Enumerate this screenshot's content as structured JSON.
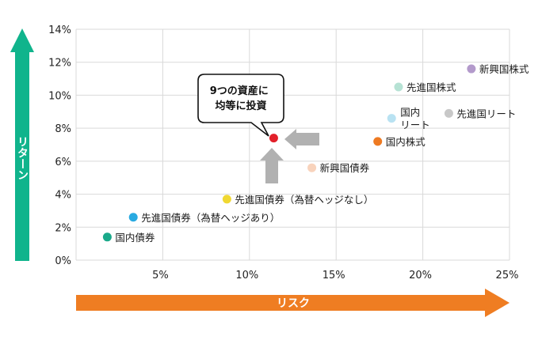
{
  "chart_data": {
    "type": "scatter",
    "xlabel": "リスク",
    "ylabel": "リターン",
    "xlim": [
      0,
      25
    ],
    "ylim": [
      0,
      14
    ],
    "xticks": [
      5,
      10,
      15,
      20,
      25
    ],
    "xtick_labels": [
      "5%",
      "10%",
      "15%",
      "20%",
      "25%"
    ],
    "yticks": [
      0,
      2,
      4,
      6,
      8,
      10,
      12,
      14
    ],
    "ytick_labels": [
      "0%",
      "2%",
      "4%",
      "6%",
      "8%",
      "10%",
      "12%",
      "14%"
    ],
    "grid": true,
    "points": [
      {
        "name": "国内債券",
        "x": 1.8,
        "y": 1.4,
        "color": "#1aa98a"
      },
      {
        "name": "先進国債券（為替ヘッジあり）",
        "x": 3.3,
        "y": 2.6,
        "color": "#29aae1"
      },
      {
        "name": "先進国債券（為替ヘッジなし）",
        "x": 8.7,
        "y": 3.7,
        "color": "#f0d832"
      },
      {
        "name": "新興国債券",
        "x": 13.6,
        "y": 5.6,
        "color": "#f8d3bc"
      },
      {
        "name": "国内株式",
        "x": 17.4,
        "y": 7.2,
        "color": "#ee7a22"
      },
      {
        "name": "国内\nリート",
        "x": 18.2,
        "y": 8.6,
        "color": "#b9e2f2"
      },
      {
        "name": "先進国株式",
        "x": 18.6,
        "y": 10.5,
        "color": "#b6e2d4"
      },
      {
        "name": "先進国リート",
        "x": 21.5,
        "y": 8.9,
        "color": "#c8c8c8"
      },
      {
        "name": "新興国株式",
        "x": 22.8,
        "y": 11.6,
        "color": "#b39acb"
      }
    ],
    "highlight": {
      "name": "9つの資産に\n均等に投資",
      "x": 11.4,
      "y": 7.4,
      "color": "#e2202a"
    }
  },
  "colors": {
    "grid": "#d9d9d9",
    "return_arrow": "#10b48c",
    "risk_arrow": "#ef7d22",
    "pointer_arrow": "#b1b1b1"
  }
}
